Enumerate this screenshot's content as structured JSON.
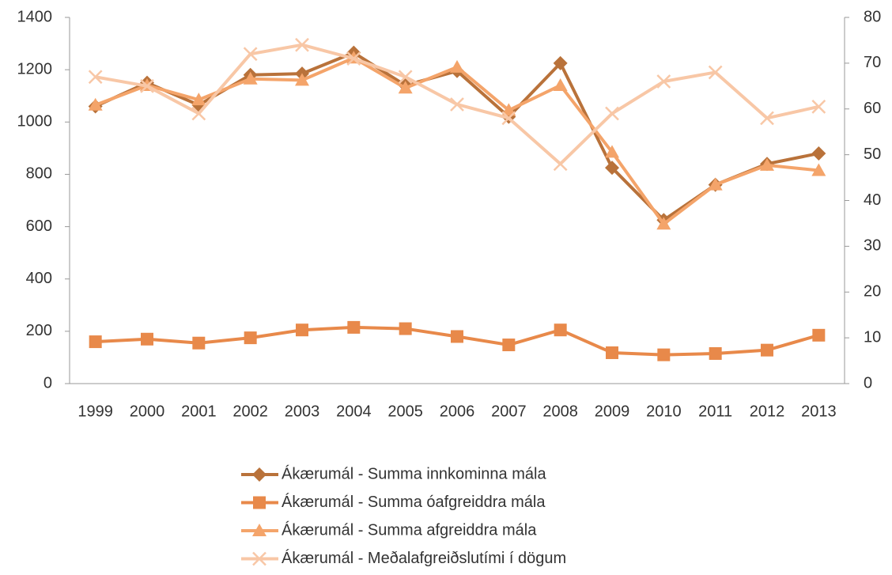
{
  "chart_data": {
    "type": "line",
    "categories": [
      "1999",
      "2000",
      "2001",
      "2002",
      "2003",
      "2004",
      "2005",
      "2006",
      "2007",
      "2008",
      "2009",
      "2010",
      "2011",
      "2012",
      "2013"
    ],
    "series": [
      {
        "name": "Ákærumál  - Summa innkominna mála",
        "color": "#b9723a",
        "marker": "diamond",
        "axis": "y",
        "values": [
          1060,
          1150,
          1065,
          1180,
          1185,
          1265,
          1140,
          1195,
          1020,
          1225,
          825,
          625,
          760,
          840,
          880
        ]
      },
      {
        "name": "Ákærumál  - Summa óafgreiddra mála",
        "color": "#e8894a",
        "marker": "square",
        "axis": "y",
        "values": [
          160,
          170,
          155,
          175,
          205,
          215,
          210,
          180,
          148,
          205,
          118,
          110,
          115,
          128,
          185
        ]
      },
      {
        "name": "Ákærumál  - Summa afgreiddra mála",
        "color": "#f4a46a",
        "marker": "triangle",
        "axis": "y",
        "values": [
          1065,
          1140,
          1085,
          1165,
          1160,
          1245,
          1130,
          1210,
          1045,
          1140,
          885,
          610,
          760,
          835,
          815
        ]
      },
      {
        "name": "Ákærumál  - Meðalafgreiðslutími í dögum",
        "color": "#f8c7a6",
        "marker": "x",
        "axis": "y2",
        "values": [
          67,
          65,
          59,
          72,
          74,
          71,
          67,
          61,
          58,
          48,
          59,
          66,
          68,
          58,
          60.5
        ]
      }
    ],
    "ylim": [
      0,
      1400
    ],
    "yticks": [
      0,
      200,
      400,
      600,
      800,
      1000,
      1200,
      1400
    ],
    "y2lim": [
      0,
      80
    ],
    "y2ticks": [
      0,
      10,
      20,
      30,
      40,
      50,
      60,
      70,
      80
    ],
    "legend": "bottom"
  }
}
